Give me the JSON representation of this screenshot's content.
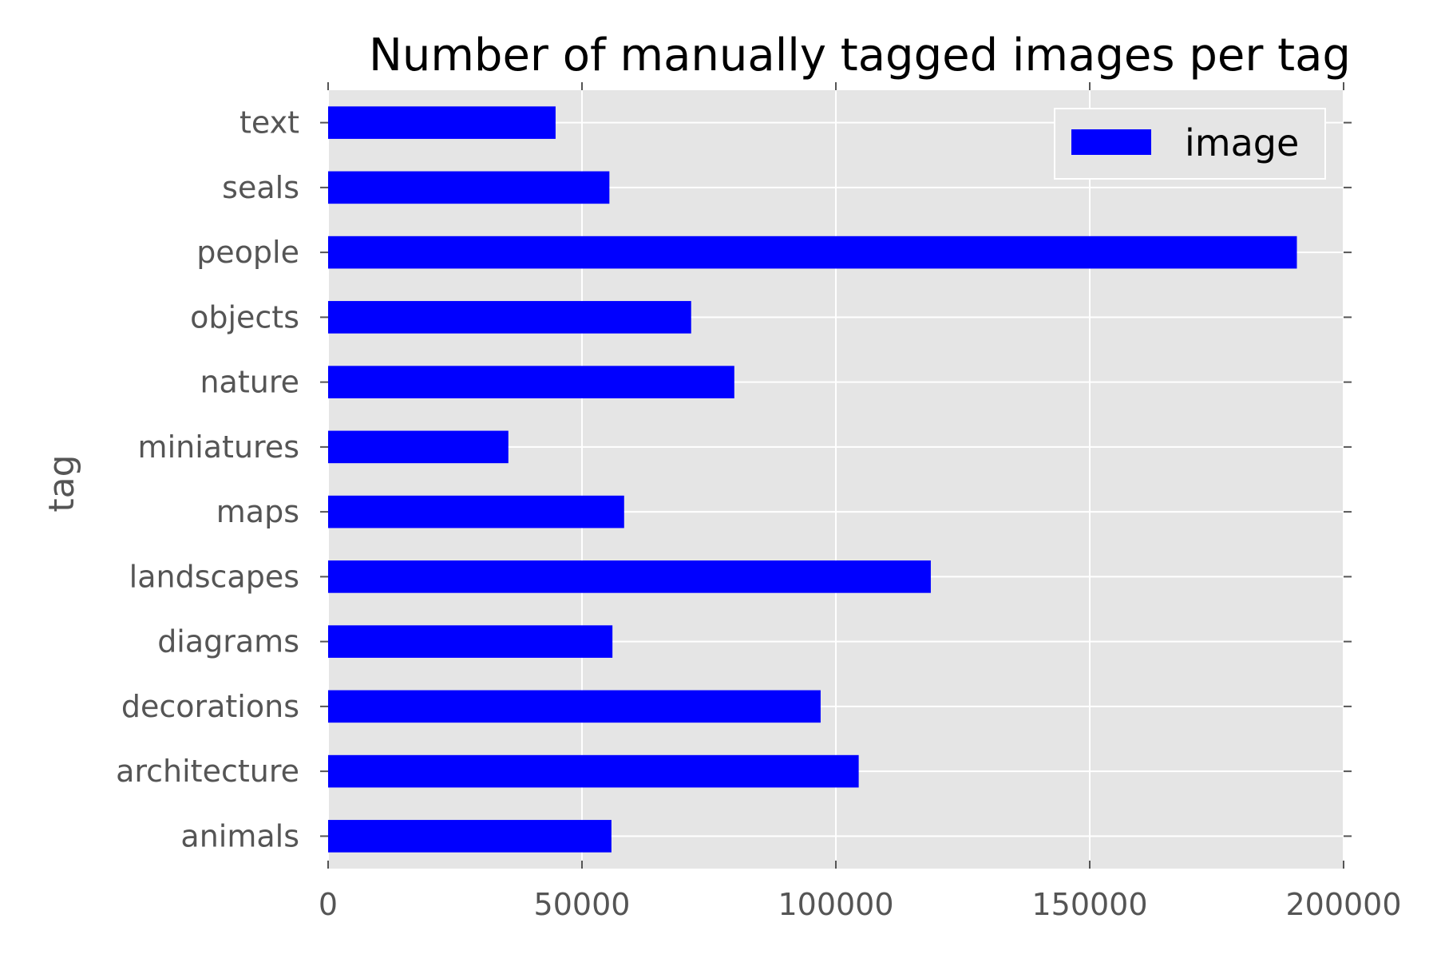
{
  "chart_data": {
    "type": "bar",
    "orientation": "horizontal",
    "title": "Number of manually tagged images per tag",
    "xlabel": "",
    "ylabel": "tag",
    "categories": [
      "animals",
      "architecture",
      "decorations",
      "diagrams",
      "landscapes",
      "maps",
      "miniatures",
      "nature",
      "objects",
      "people",
      "seals",
      "text"
    ],
    "series": [
      {
        "name": "image",
        "color": "#0000ff",
        "values": [
          55800,
          104500,
          97000,
          56000,
          118700,
          58300,
          35500,
          80000,
          71500,
          190800,
          55400,
          44800
        ]
      }
    ],
    "xlim": [
      0,
      200000
    ],
    "xticks": [
      0,
      50000,
      100000,
      150000,
      200000
    ],
    "grid": true,
    "legend": "top-right",
    "background": "#e5e5e5"
  }
}
